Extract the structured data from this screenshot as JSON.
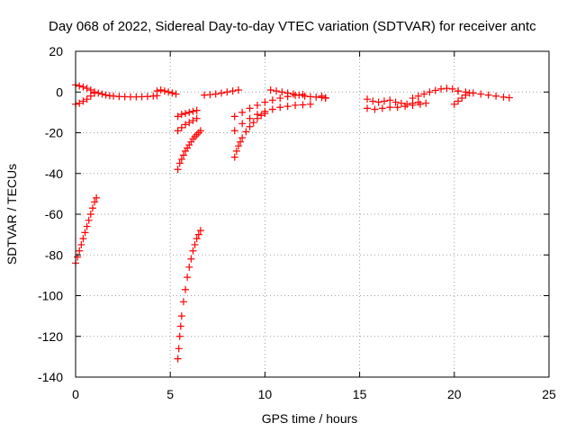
{
  "chart_data": {
    "type": "scatter",
    "title": "Day 068 of 2022, Sidereal Day-to-day VTEC variation (SDTVAR) for receiver antc",
    "xlabel": "GPS time / hours",
    "ylabel": "SDTVAR / TECUs",
    "xlim": [
      0,
      25
    ],
    "ylim": [
      -140,
      20
    ],
    "xticks": [
      0,
      5,
      10,
      15,
      20,
      25
    ],
    "yticks": [
      20,
      0,
      -20,
      -40,
      -60,
      -80,
      -100,
      -120,
      -140
    ],
    "grid": true,
    "marker": "plus",
    "color": "#ff0000",
    "series": [
      {
        "x": [
          0.0,
          0.2,
          0.4,
          0.6,
          0.8,
          1.0,
          1.2,
          1.4,
          1.6,
          1.8,
          2.0,
          2.3,
          2.6,
          2.9,
          3.2,
          3.5,
          3.8,
          4.1,
          4.3
        ],
        "y": [
          3.5,
          3,
          2.5,
          1.8,
          1,
          0,
          -0.5,
          -1,
          -1.5,
          -1.8,
          -2,
          -2.2,
          -2.3,
          -2.4,
          -2.4,
          -2.3,
          -2.2,
          -2,
          -1.8
        ]
      },
      {
        "x": [
          0.0,
          0.2,
          0.4,
          0.6,
          0.8,
          1.0
        ],
        "y": [
          -6,
          -5.5,
          -4.5,
          -3.5,
          -2,
          -0.5
        ]
      },
      {
        "x": [
          0.0,
          0.1,
          0.2,
          0.3,
          0.4,
          0.5,
          0.6,
          0.7,
          0.8,
          0.9,
          1.0,
          1.1
        ],
        "y": [
          -84,
          -81,
          -78,
          -75,
          -72,
          -69,
          -66,
          -63,
          -60,
          -57,
          -54,
          -52
        ]
      },
      {
        "x": [
          4.3,
          4.5,
          4.7,
          4.9,
          5.1,
          5.3
        ],
        "y": [
          0.5,
          1,
          0.5,
          0,
          -0.5,
          -1
        ]
      },
      {
        "x": [
          5.4,
          5.6,
          5.8,
          6.0,
          6.2,
          6.4
        ],
        "y": [
          -12,
          -11,
          -10.5,
          -10,
          -9.5,
          -9
        ]
      },
      {
        "x": [
          5.4,
          5.6,
          5.8,
          6.0,
          6.2,
          6.4
        ],
        "y": [
          -19,
          -17.5,
          -16,
          -15,
          -14,
          -13
        ]
      },
      {
        "x": [
          5.4,
          5.5,
          5.6,
          5.7,
          5.8,
          5.9,
          6.0,
          6.1,
          6.2,
          6.3,
          6.4,
          6.5,
          6.6
        ],
        "y": [
          -38,
          -35,
          -33,
          -31,
          -29,
          -27.5,
          -26,
          -24.5,
          -23,
          -22,
          -21,
          -20,
          -19
        ]
      },
      {
        "x": [
          5.4,
          5.45,
          5.5,
          5.55,
          5.6,
          5.7,
          5.8,
          5.9,
          6.0,
          6.1,
          6.2,
          6.3,
          6.4,
          6.5,
          6.6
        ],
        "y": [
          -131,
          -126,
          -120,
          -115,
          -110,
          -103,
          -97,
          -91,
          -86,
          -82,
          -78,
          -75,
          -72,
          -70,
          -68
        ]
      },
      {
        "x": [
          6.8,
          7.1,
          7.4,
          7.7,
          8.0,
          8.3,
          8.6
        ],
        "y": [
          -1.5,
          -1.3,
          -1,
          -0.5,
          0,
          0.5,
          1
        ]
      },
      {
        "x": [
          8.4,
          8.8,
          9.2,
          9.6,
          10.0,
          10.4,
          10.8,
          11.2,
          11.6,
          12.0
        ],
        "y": [
          -12,
          -10,
          -8,
          -6.5,
          -5,
          -4,
          -3,
          -2.2,
          -1.6,
          -1.2
        ]
      },
      {
        "x": [
          8.4,
          8.8,
          9.2,
          9.6,
          10.0,
          10.4,
          10.8,
          11.2,
          11.6,
          12.0,
          12.4
        ],
        "y": [
          -19,
          -15.5,
          -13,
          -11,
          -9.5,
          -8.5,
          -7.5,
          -7,
          -6.5,
          -6.3,
          -6
        ]
      },
      {
        "x": [
          8.4,
          8.5,
          8.6,
          8.7,
          8.8,
          9.0,
          9.2,
          9.4,
          9.6,
          9.8,
          10.0
        ],
        "y": [
          -32,
          -29,
          -26.5,
          -24.5,
          -22.5,
          -19.5,
          -17,
          -15,
          -13,
          -11.5,
          -10.5
        ]
      },
      {
        "x": [
          10.3,
          10.6,
          10.9,
          11.2,
          11.5,
          11.8,
          12.1,
          12.4,
          12.7,
          13.0,
          13.2
        ],
        "y": [
          1,
          0.5,
          0,
          -0.5,
          -1,
          -1.5,
          -2,
          -2.3,
          -2.5,
          -2.7,
          -2.8
        ]
      },
      {
        "x": [
          13.0,
          13.2
        ],
        "y": [
          -2,
          -3
        ]
      },
      {
        "x": [
          15.4,
          15.7,
          16.0,
          16.3,
          16.6,
          16.9,
          17.2,
          17.5,
          17.8,
          18.1
        ],
        "y": [
          -3.5,
          -4.5,
          -5,
          -4.5,
          -4,
          -5,
          -5.5,
          -6,
          -5.5,
          -5
        ]
      },
      {
        "x": [
          15.4,
          15.8,
          16.2,
          16.6,
          17.0,
          17.4,
          17.8,
          18.2,
          18.5
        ],
        "y": [
          -8,
          -8.5,
          -8,
          -7.5,
          -7.5,
          -7,
          -6.5,
          -6,
          -5.5
        ]
      },
      {
        "x": [
          17.8,
          18.1,
          18.4,
          18.7,
          19.0,
          19.3,
          19.6,
          19.9,
          20.2
        ],
        "y": [
          -3,
          -2,
          -1,
          0,
          0.8,
          1.5,
          1.8,
          1.5,
          0.5
        ]
      },
      {
        "x": [
          20.0,
          20.2,
          20.4,
          20.6,
          20.8
        ],
        "y": [
          -6,
          -4.5,
          -3,
          -1.5,
          -0.5
        ]
      },
      {
        "x": [
          20.2,
          20.6,
          21.0,
          21.4,
          21.8,
          22.2,
          22.6,
          22.9
        ],
        "y": [
          0.5,
          0,
          -0.5,
          -1,
          -1.5,
          -2,
          -2.5,
          -2.8
        ]
      }
    ]
  }
}
